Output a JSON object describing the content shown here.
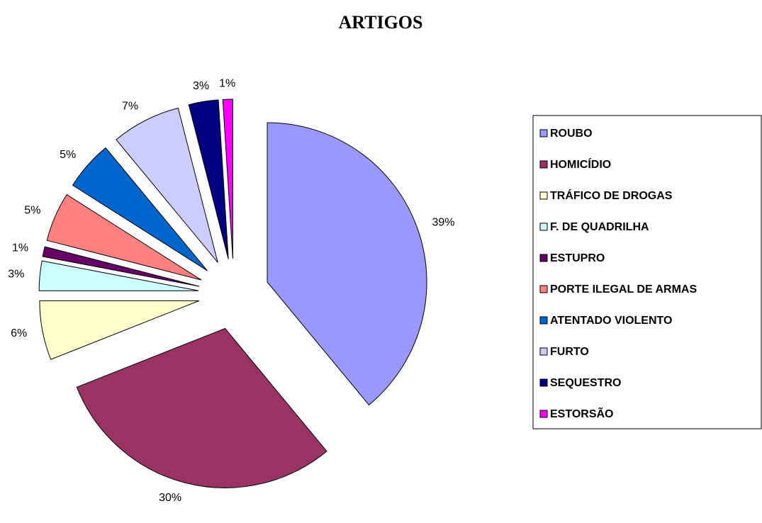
{
  "chart_data": {
    "type": "pie",
    "title": "ARTIGOS",
    "categories": [
      "ROUBO",
      "HOMICÍDIO",
      "TRÁFICO DE DROGAS",
      "F. DE QUADRILHA",
      "ESTUPRO",
      "PORTE ILEGAL DE ARMAS",
      "ATENTADO VIOLENTO",
      "FURTO",
      "SEQUESTRO",
      "ESTORSÃO"
    ],
    "values": [
      39,
      30,
      6,
      3,
      1,
      5,
      5,
      7,
      3,
      1
    ],
    "value_labels": [
      "39%",
      "30%",
      "6%",
      "3%",
      "1%",
      "5%",
      "5%",
      "7%",
      "3%",
      "1%"
    ],
    "colors": [
      "#9999ff",
      "#993366",
      "#ffffcc",
      "#ccffff",
      "#660066",
      "#ff8080",
      "#0066cc",
      "#ccccff",
      "#000080",
      "#ff00ff"
    ],
    "legend": "right"
  }
}
